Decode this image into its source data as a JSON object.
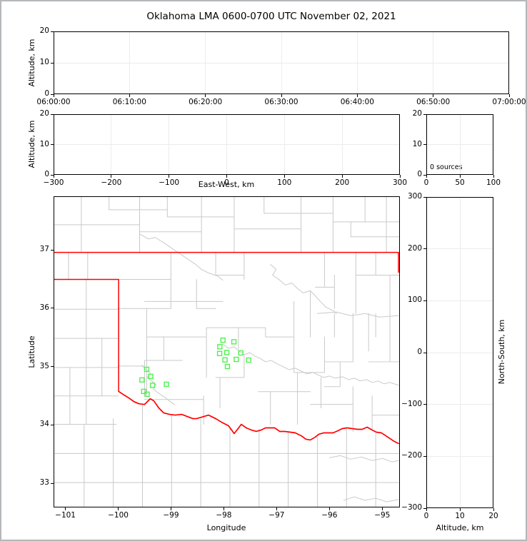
{
  "title": "Oklahoma LMA 0600-0700 UTC November 02, 2021",
  "colors": {
    "source_marker": "#4ef24e",
    "state_border": "#ff0000",
    "county_line": "#c9c9c9",
    "grid_line": "#ececec",
    "axis": "#000000",
    "frame_border": "#b5b8ba"
  },
  "panels": {
    "time_height": {
      "ylabel": "Altitude, km",
      "ylim": [
        0,
        20
      ],
      "yticks": [
        0,
        10,
        20
      ],
      "ytick_labels": [
        "0",
        "10",
        "20"
      ],
      "xlim_seconds": [
        0,
        3600
      ],
      "xticks_seconds": [
        0,
        600,
        1200,
        1800,
        2400,
        3000,
        3600
      ],
      "xtick_labels": [
        "06:00:00",
        "06:10:00",
        "06:20:00",
        "06:30:00",
        "06:40:00",
        "06:50:00",
        "07:00:00"
      ]
    },
    "ew_height": {
      "ylabel": "Altitude, km",
      "xlabel": "East-West, km",
      "ylim": [
        0,
        20
      ],
      "yticks": [
        0,
        10,
        20
      ],
      "ytick_labels": [
        "0",
        "10",
        "20"
      ],
      "xlim": [
        -300,
        300
      ],
      "xticks": [
        -300,
        -200,
        -100,
        0,
        100,
        200,
        300
      ],
      "xtick_labels": [
        "−300",
        "−200",
        "−100",
        "0",
        "100",
        "200",
        "300"
      ]
    },
    "histogram": {
      "annotation": "0 sources",
      "ylim": [
        0,
        20
      ],
      "yticks": [
        0,
        10,
        20
      ],
      "ytick_labels": [
        "0",
        "10",
        "20"
      ],
      "xlim": [
        0,
        100
      ],
      "xticks": [
        0,
        50,
        100
      ],
      "xtick_labels": [
        "0",
        "50",
        "100"
      ]
    },
    "map": {
      "ylabel": "Latitude",
      "xlabel": "Longitude",
      "ylim": [
        32.585,
        37.918
      ],
      "yticks": [
        33,
        34,
        35,
        36,
        37
      ],
      "ytick_labels": [
        "33",
        "34",
        "35",
        "36",
        "37"
      ],
      "xlim": [
        -101.224,
        -94.666
      ],
      "xticks": [
        -101,
        -100,
        -99,
        -98,
        -97,
        -96,
        -95
      ],
      "xtick_labels": [
        "−101",
        "−100",
        "−99",
        "−98",
        "−97",
        "−96",
        "−95"
      ]
    },
    "ns_height": {
      "ylabel_right": "North-South, km",
      "xlabel": "Altitude, km",
      "ylim": [
        -300,
        300
      ],
      "yticks": [
        300,
        200,
        100,
        0,
        -100,
        -200,
        -300
      ],
      "ytick_labels": [
        "300",
        "200",
        "100",
        "0",
        "−100",
        "−200",
        "−300"
      ],
      "xlim": [
        0,
        20
      ],
      "xticks": [
        0,
        10,
        20
      ],
      "xtick_labels": [
        "0",
        "10",
        "20"
      ]
    }
  },
  "chart_data": [
    {
      "type": "scatter",
      "panel": "altitude-vs-time",
      "xlabel_ticks": [
        "06:00:00",
        "06:10:00",
        "06:20:00",
        "06:30:00",
        "06:40:00",
        "06:50:00",
        "07:00:00"
      ],
      "ylim": [
        0,
        20
      ],
      "points": []
    },
    {
      "type": "scatter",
      "panel": "altitude-vs-east-west",
      "xlim": [
        -300,
        300
      ],
      "ylim": [
        0,
        20
      ],
      "points": []
    },
    {
      "type": "histogram",
      "panel": "source-count-histogram",
      "annotation": "0 sources",
      "xlim": [
        0,
        100
      ],
      "ylim": [
        0,
        20
      ],
      "bars": []
    },
    {
      "type": "scatter",
      "panel": "plan-view-map",
      "marker": "open-square",
      "marker_color": "#4ef24e",
      "xlim": [
        -101.224,
        -94.666
      ],
      "ylim": [
        32.585,
        37.918
      ],
      "sources_lon_lat": [
        [
          -99.466,
          34.951
        ],
        [
          -99.39,
          34.829
        ],
        [
          -99.557,
          34.768
        ],
        [
          -99.357,
          34.675
        ],
        [
          -99.092,
          34.694
        ],
        [
          -99.525,
          34.572
        ],
        [
          -99.458,
          34.523
        ],
        [
          -98.016,
          35.453
        ],
        [
          -97.809,
          35.425
        ],
        [
          -98.076,
          35.339
        ],
        [
          -98.08,
          35.223
        ],
        [
          -97.944,
          35.241
        ],
        [
          -97.677,
          35.233
        ],
        [
          -97.764,
          35.122
        ],
        [
          -97.528,
          35.11
        ],
        [
          -97.978,
          35.113
        ],
        [
          -97.931,
          35.0
        ]
      ]
    },
    {
      "type": "scatter",
      "panel": "north-south-vs-altitude",
      "xlim": [
        0,
        20
      ],
      "ylim": [
        -300,
        300
      ],
      "points": []
    }
  ]
}
